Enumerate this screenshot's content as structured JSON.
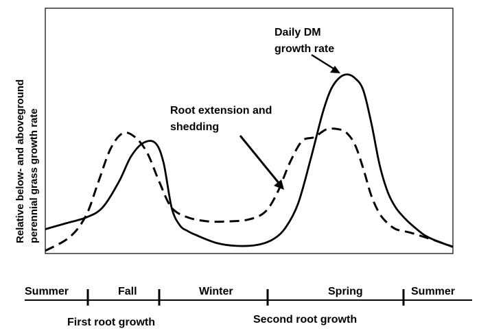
{
  "chart_data": {
    "type": "line",
    "title": "",
    "xlabel": "",
    "ylabel_line1": "Relative below- and aboveground",
    "ylabel_line2": "perennial grass growth rate",
    "xlim": [
      0,
      100
    ],
    "ylim": [
      0,
      100
    ],
    "grid": false,
    "series": [
      {
        "name": "Daily DM growth rate",
        "style": "solid",
        "x": [
          0,
          5,
          10,
          14,
          18,
          21,
          24,
          27,
          29,
          31,
          33,
          35,
          37,
          42,
          47,
          52,
          56,
          59,
          62,
          65,
          68,
          70,
          72,
          74,
          76,
          78,
          80,
          82,
          84,
          86,
          88,
          90,
          93,
          96,
          100
        ],
        "y": [
          11,
          14,
          17,
          22,
          35,
          48,
          55,
          55,
          45,
          22,
          13,
          10,
          8,
          4,
          2.5,
          3,
          6,
          12,
          24,
          46,
          70,
          82,
          88,
          90,
          88,
          82,
          65,
          44,
          30,
          22,
          17,
          13,
          8,
          5,
          2
        ]
      },
      {
        "name": "Root extension and shedding",
        "style": "dashed",
        "x": [
          0,
          6,
          10,
          13,
          16,
          19,
          22,
          25,
          28,
          31,
          35,
          40,
          45,
          50,
          54,
          57,
          60,
          63,
          66,
          69,
          72,
          74,
          76,
          78,
          80,
          82,
          84,
          86,
          88,
          90,
          93,
          96,
          100
        ],
        "y": [
          0,
          7,
          18,
          35,
          52,
          60,
          58,
          50,
          35,
          22,
          17,
          15,
          15,
          16,
          20,
          30,
          45,
          56,
          58,
          62,
          62,
          60,
          54,
          42,
          28,
          19,
          14,
          11,
          10,
          9,
          7,
          5,
          2
        ]
      }
    ],
    "annotations": [
      {
        "target": "Daily DM growth rate",
        "line1": "Daily DM",
        "line2": "growth rate"
      },
      {
        "target": "Root extension and shedding",
        "line1": "Root extension and",
        "line2": "shedding"
      }
    ],
    "timeline": {
      "seasons": [
        "Summer",
        "Fall",
        "Winter",
        "Spring",
        "Summer"
      ],
      "events": [
        "First root growth",
        "Second root growth"
      ]
    }
  },
  "colors": {
    "line": "#000000",
    "background": "#ffffff"
  }
}
